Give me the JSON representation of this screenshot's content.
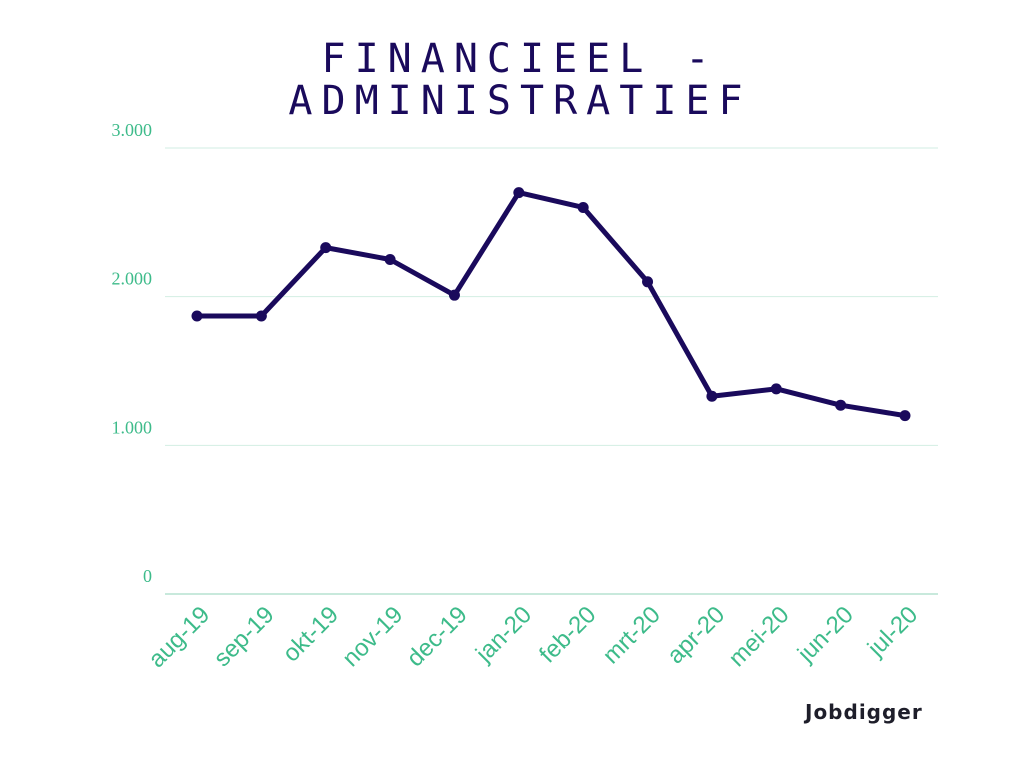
{
  "colors": {
    "line": "#1a0a5c",
    "axis_text": "#3dbb8a",
    "grid": "#d2eee3",
    "title": "#1a0a5c",
    "brand": "#1e1e2a"
  },
  "brand": {
    "name": "Jobdigger"
  },
  "chart_data": {
    "type": "line",
    "title_lines": [
      "FINANCIEEL -",
      "ADMINISTRATIEF"
    ],
    "categories": [
      "aug-19",
      "sep-19",
      "okt-19",
      "nov-19",
      "dec-19",
      "jan-20",
      "feb-20",
      "mrt-20",
      "apr-20",
      "mei-20",
      "jun-20",
      "jul-20"
    ],
    "values": [
      1870,
      1870,
      2330,
      2250,
      2010,
      2700,
      2600,
      2100,
      1330,
      1380,
      1270,
      1200
    ],
    "yticks": [
      0,
      1000,
      2000,
      3000
    ],
    "ytick_labels": [
      "0",
      "1.000",
      "2.000",
      "3.000"
    ],
    "ylim": [
      0,
      3000
    ],
    "grid": true,
    "legend": "none",
    "markers": true
  }
}
